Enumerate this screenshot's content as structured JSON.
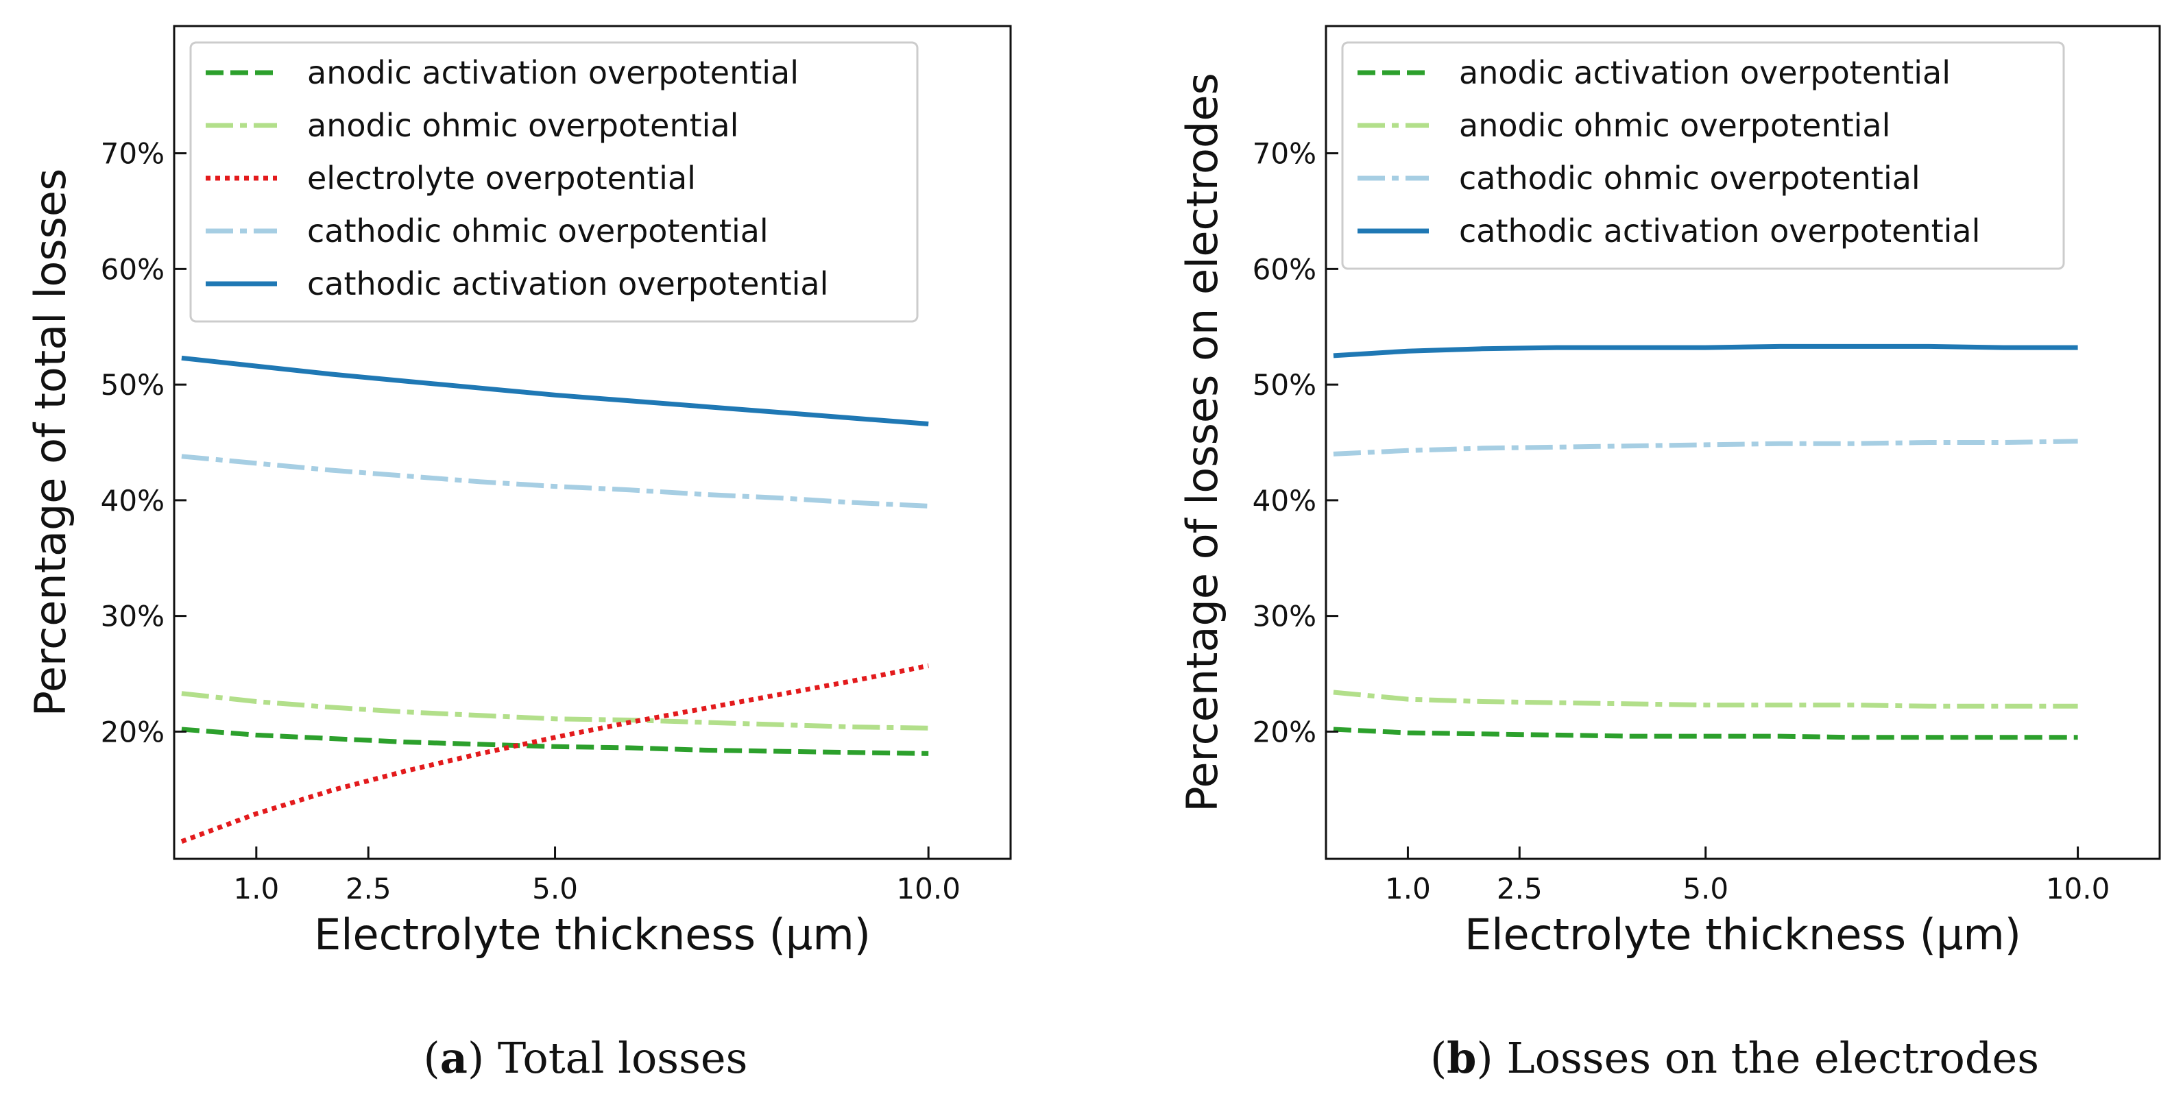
{
  "colors": {
    "anodic_activation": "#2ca02c",
    "anodic_ohmic": "#b2df8a",
    "electrolyte": "#e31a1c",
    "cathodic_ohmic": "#a6cee3",
    "cathodic_activation": "#1f78b4"
  },
  "chart_data": [
    {
      "type": "line",
      "xlabel": "Electrolyte thickness (µm)",
      "ylabel": "Percentage of total losses",
      "xlim": [
        -0.1,
        11.1
      ],
      "ylim": [
        9,
        81
      ],
      "xticks": [
        1.0,
        2.5,
        5.0,
        10.0
      ],
      "xtick_labels": [
        "1.0",
        "2.5",
        "5.0",
        "10.0"
      ],
      "yticks": [
        20,
        30,
        40,
        50,
        60,
        70
      ],
      "ytick_labels": [
        "20%",
        "30%",
        "40%",
        "50%",
        "60%",
        "70%"
      ],
      "legend_position": "top-left",
      "caption": {
        "label": "a",
        "open": "(",
        "close": ")",
        "text": " Total losses"
      },
      "series": [
        {
          "key": "anodic_activation",
          "name": "anodic activation overpotential",
          "style": "dashed",
          "x": [
            0,
            1,
            2,
            3,
            4,
            5,
            6,
            7,
            8,
            9,
            10
          ],
          "values": [
            20.2,
            19.7,
            19.4,
            19.1,
            18.9,
            18.7,
            18.6,
            18.4,
            18.3,
            18.2,
            18.1
          ]
        },
        {
          "key": "anodic_ohmic",
          "name": "anodic ohmic overpotential",
          "style": "dashdot",
          "x": [
            0,
            1,
            2,
            3,
            4,
            5,
            6,
            7,
            8,
            9,
            10
          ],
          "values": [
            23.3,
            22.6,
            22.1,
            21.7,
            21.4,
            21.1,
            21.0,
            20.8,
            20.6,
            20.4,
            20.3
          ]
        },
        {
          "key": "electrolyte",
          "name": "electrolyte overpotential",
          "style": "dotted",
          "x": [
            0,
            1,
            2,
            3,
            4,
            5,
            6,
            7,
            8,
            9,
            10
          ],
          "values": [
            10.5,
            12.9,
            14.9,
            16.6,
            18.1,
            19.5,
            20.8,
            22.0,
            23.2,
            24.4,
            25.7
          ]
        },
        {
          "key": "cathodic_ohmic",
          "name": "cathodic ohmic overpotential",
          "style": "dashdot",
          "x": [
            0,
            1,
            2,
            3,
            4,
            5,
            6,
            7,
            8,
            9,
            10
          ],
          "values": [
            43.8,
            43.2,
            42.6,
            42.1,
            41.6,
            41.2,
            40.9,
            40.5,
            40.2,
            39.8,
            39.5
          ]
        },
        {
          "key": "cathodic_activation",
          "name": "cathodic activation overpotential",
          "style": "solid",
          "x": [
            0,
            1,
            2,
            3,
            4,
            5,
            6,
            7,
            8,
            9,
            10
          ],
          "values": [
            52.3,
            51.6,
            50.9,
            50.3,
            49.7,
            49.1,
            48.6,
            48.1,
            47.6,
            47.1,
            46.6
          ]
        }
      ]
    },
    {
      "type": "line",
      "xlabel": "Electrolyte thickness  (µm)",
      "ylabel": "Percentage of losses on electrodes",
      "xlim": [
        -0.1,
        11.1
      ],
      "ylim": [
        9,
        81
      ],
      "xticks": [
        1.0,
        2.5,
        5.0,
        10.0
      ],
      "xtick_labels": [
        "1.0",
        "2.5",
        "5.0",
        "10.0"
      ],
      "yticks": [
        20,
        30,
        40,
        50,
        60,
        70
      ],
      "ytick_labels": [
        "20%",
        "30%",
        "40%",
        "50%",
        "60%",
        "70%"
      ],
      "legend_position": "top-left",
      "caption": {
        "label": "b",
        "open": "(",
        "close": ")",
        "text": " Losses on the electrodes"
      },
      "series": [
        {
          "key": "anodic_activation",
          "name": "anodic activation overpotential",
          "style": "dashed",
          "x": [
            0,
            1,
            2,
            3,
            4,
            5,
            6,
            7,
            8,
            9,
            10
          ],
          "values": [
            20.2,
            19.9,
            19.8,
            19.7,
            19.6,
            19.6,
            19.6,
            19.5,
            19.5,
            19.5,
            19.5
          ]
        },
        {
          "key": "anodic_ohmic",
          "name": "anodic ohmic overpotential",
          "style": "dashdot",
          "x": [
            0,
            1,
            2,
            3,
            4,
            5,
            6,
            7,
            8,
            9,
            10
          ],
          "values": [
            23.4,
            22.8,
            22.6,
            22.5,
            22.4,
            22.3,
            22.3,
            22.3,
            22.2,
            22.2,
            22.2
          ]
        },
        {
          "key": "cathodic_ohmic",
          "name": "cathodic ohmic overpotential",
          "style": "dashdot",
          "x": [
            0,
            1,
            2,
            3,
            4,
            5,
            6,
            7,
            8,
            9,
            10
          ],
          "values": [
            44.0,
            44.3,
            44.5,
            44.6,
            44.7,
            44.8,
            44.9,
            44.9,
            45.0,
            45.0,
            45.1
          ]
        },
        {
          "key": "cathodic_activation",
          "name": "cathodic activation overpotential",
          "style": "solid",
          "x": [
            0,
            1,
            2,
            3,
            4,
            5,
            6,
            7,
            8,
            9,
            10
          ],
          "values": [
            52.5,
            52.9,
            53.1,
            53.2,
            53.2,
            53.2,
            53.3,
            53.3,
            53.3,
            53.2,
            53.2
          ]
        }
      ]
    }
  ]
}
